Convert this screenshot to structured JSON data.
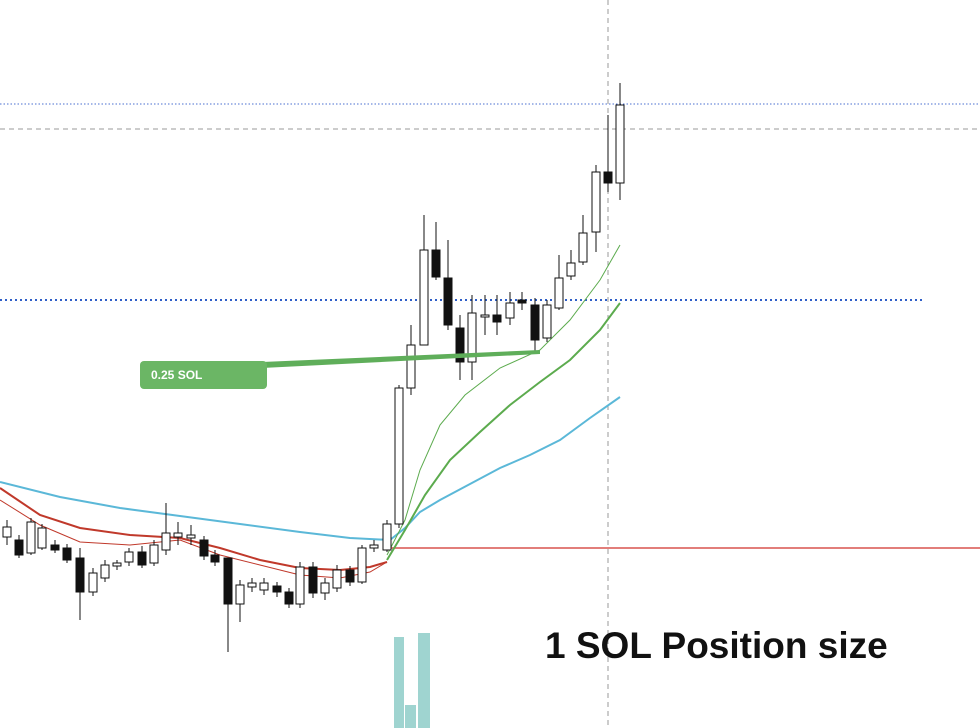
{
  "label": {
    "text": "0.25 SOL"
  },
  "caption": {
    "text": "1 SOL Position size"
  }
}
